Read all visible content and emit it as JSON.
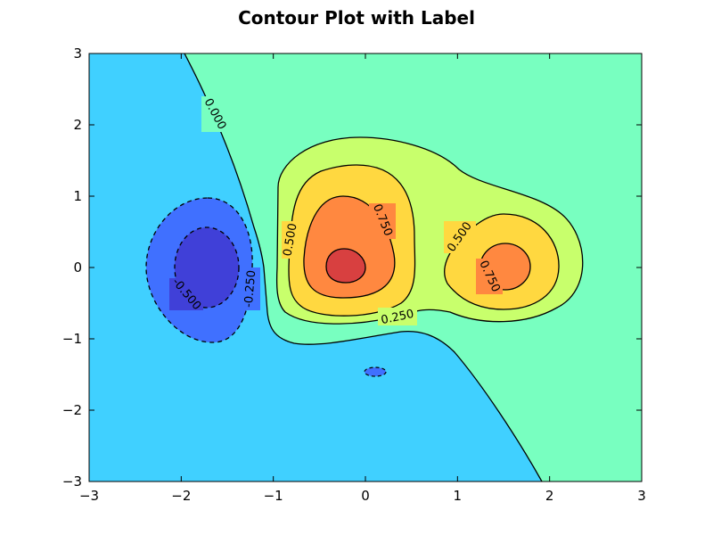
{
  "chart_data": {
    "type": "contour",
    "title": "Contour Plot with Label",
    "xlabel": "",
    "ylabel": "",
    "xlim": [
      -3,
      3
    ],
    "ylim": [
      -3,
      3
    ],
    "x_ticks": [
      -3,
      -2,
      -1,
      0,
      1,
      2,
      3
    ],
    "y_ticks": [
      -3,
      -2,
      -1,
      0,
      1,
      2,
      3
    ],
    "x_tick_labels": [
      "−3",
      "−2",
      "−1",
      "0",
      "1",
      "2",
      "3"
    ],
    "y_tick_labels": [
      "−3",
      "−2",
      "−1",
      "0",
      "1",
      "2",
      "3"
    ],
    "levels": [
      -0.5,
      -0.25,
      0.0,
      0.25,
      0.5,
      0.75
    ],
    "contour_labels": [
      "0.000",
      "0.250",
      "0.500",
      "0.500",
      "0.750",
      "0.750",
      "-0.250",
      "-0.500"
    ],
    "fill_bands": [
      {
        "range": "< -0.5",
        "color": "#4040d8"
      },
      {
        "range": "-0.5 to -0.25",
        "color": "#4070ff"
      },
      {
        "range": "-0.25 to 0",
        "color": "#40d0ff"
      },
      {
        "range": "0 to 0.25",
        "color": "#78ffc0"
      },
      {
        "range": "0.25 to 0.5",
        "color": "#c8ff6c"
      },
      {
        "range": "0.5 to 0.75",
        "color": "#ffd840"
      },
      {
        "range": "0.75 to 1.0",
        "color": "#ff8840"
      },
      {
        "range": "> 1.0",
        "color": "#d84040"
      }
    ],
    "grid": false,
    "legend": "none"
  }
}
